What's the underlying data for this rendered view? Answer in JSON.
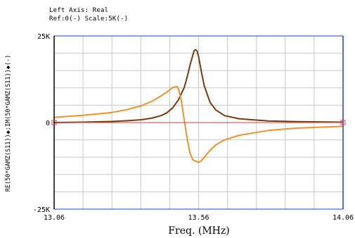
{
  "header": {
    "line1": "Left Axis: Real",
    "line2": "Ref:0(-) Scale:5K(-)"
  },
  "colors": {
    "grid": "#c8c8c8",
    "frame_left": "#000000",
    "frame_right": "#1f3fd8",
    "series1": "#7a3a10",
    "series2": "#f2922a",
    "ref_line": "#e23c3c"
  },
  "chart_data": {
    "type": "line",
    "xlabel": "Freq. (MHz)",
    "ylabel": "RE(50*GAMZ(S11))◆;IM(50*GAMZ(S11))◆(-)",
    "xlim": [
      13.06,
      14.06
    ],
    "ylim": [
      -25000,
      25000
    ],
    "x_ticks": [
      "13.06",
      "13.56",
      "14.06"
    ],
    "y_ticks": [
      "25K",
      "0",
      "-25K"
    ],
    "grid": true,
    "series": [
      {
        "color": "#7a3a10",
        "x": [
          13.06,
          13.16,
          13.26,
          13.31,
          13.36,
          13.4,
          13.43,
          13.45,
          13.47,
          13.49,
          13.51,
          13.52,
          13.53,
          13.54,
          13.545,
          13.55,
          13.555,
          13.56,
          13.57,
          13.58,
          13.6,
          13.62,
          13.65,
          13.7,
          13.8,
          13.9,
          14.06
        ],
        "y": [
          0,
          100,
          300,
          500,
          800,
          1300,
          2000,
          2800,
          4200,
          6500,
          10000,
          13000,
          16500,
          19500,
          20800,
          21000,
          20600,
          19000,
          14500,
          10500,
          5800,
          3600,
          2000,
          1100,
          450,
          250,
          100
        ]
      },
      {
        "color": "#f2922a",
        "x": [
          13.06,
          13.16,
          13.26,
          13.31,
          13.36,
          13.4,
          13.43,
          13.45,
          13.47,
          13.485,
          13.49,
          13.5,
          13.51,
          13.52,
          13.53,
          13.54,
          13.56,
          13.57,
          13.58,
          13.6,
          13.62,
          13.65,
          13.7,
          13.8,
          13.9,
          14.06
        ],
        "y": [
          1500,
          2100,
          2900,
          3700,
          4800,
          6200,
          7700,
          8800,
          10100,
          10400,
          9800,
          6500,
          1000,
          -4500,
          -8800,
          -10800,
          -11500,
          -11000,
          -10000,
          -8000,
          -6400,
          -5000,
          -3700,
          -2300,
          -1600,
          -1100
        ]
      },
      {
        "color": "#e23c3c",
        "x": [
          13.06,
          14.06
        ],
        "y": [
          0,
          0
        ]
      }
    ]
  }
}
